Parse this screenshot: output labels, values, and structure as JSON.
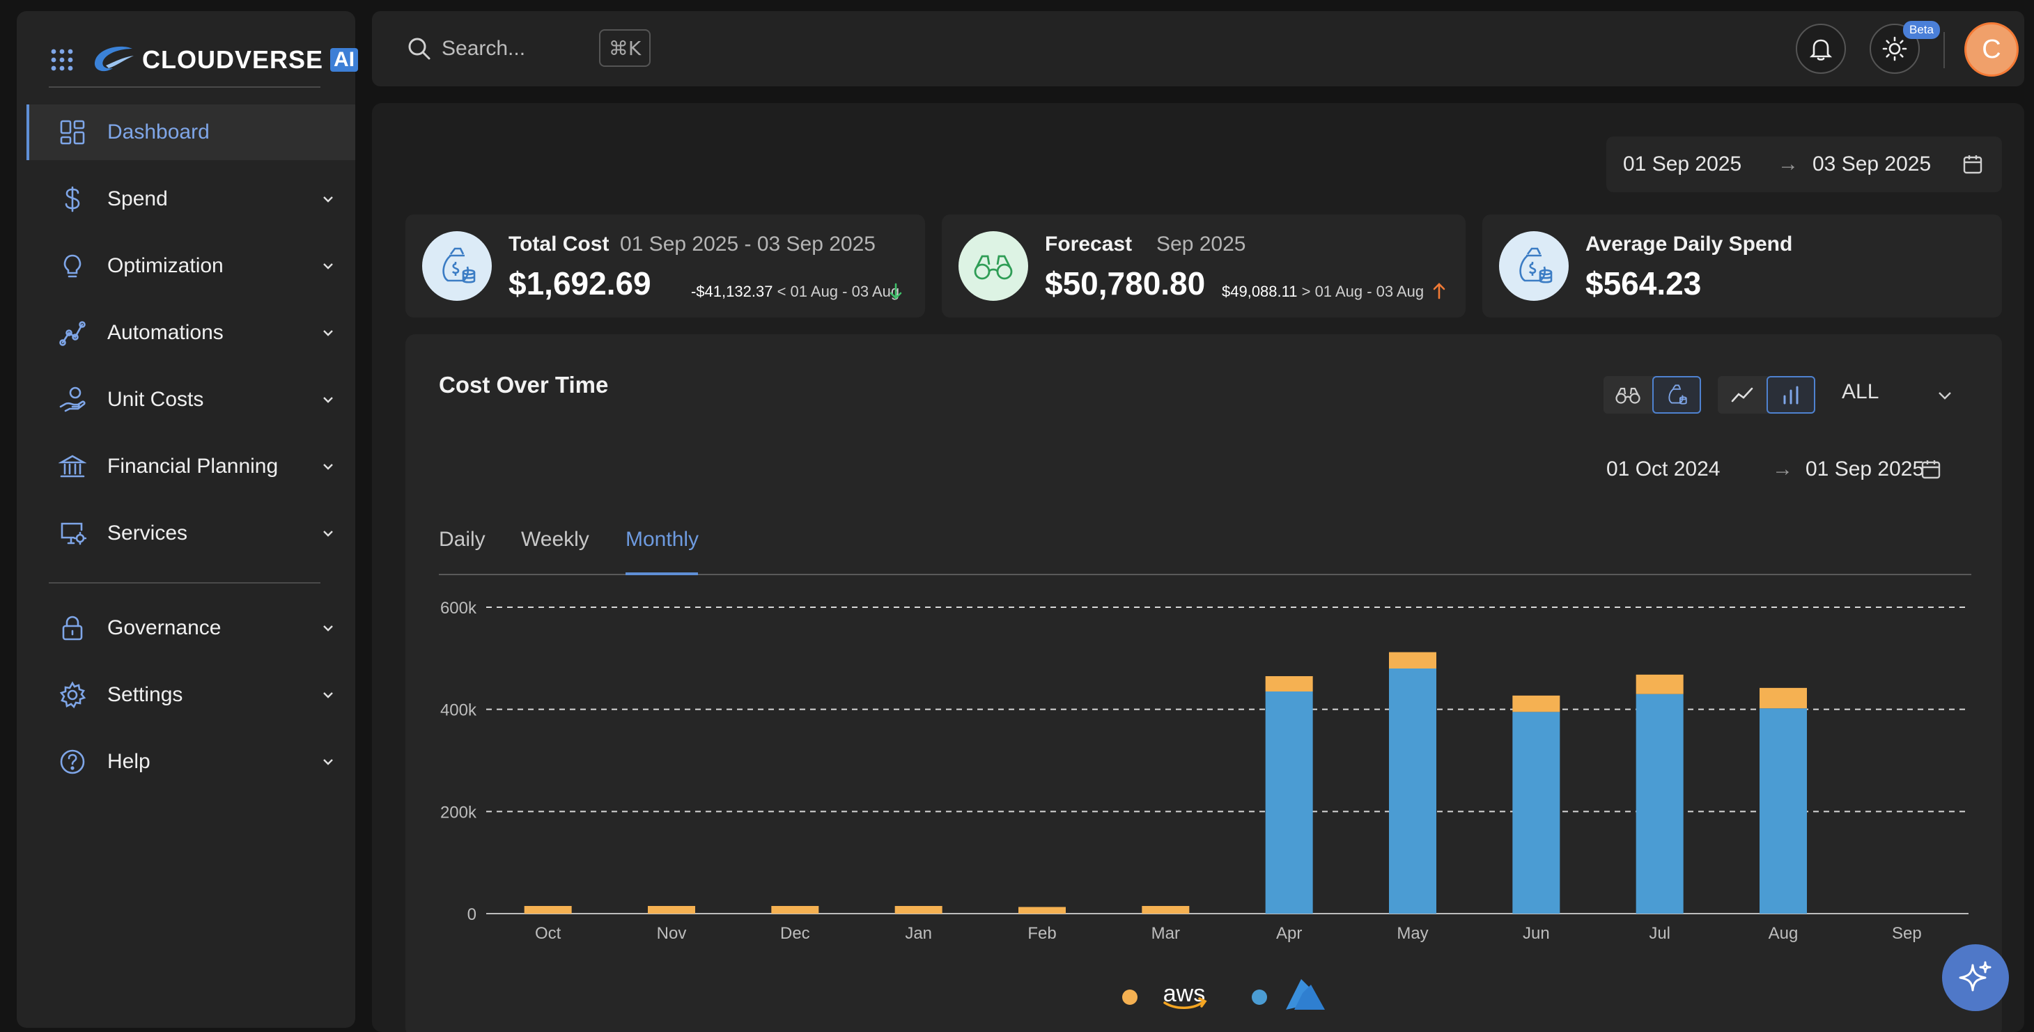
{
  "brand": {
    "name": "CLOUDVERSE",
    "ai_badge": "AI"
  },
  "sidebar": {
    "items": [
      {
        "label": "Dashboard",
        "icon": "dashboard-icon",
        "active": true
      },
      {
        "label": "Spend",
        "icon": "dollar-icon"
      },
      {
        "label": "Optimization",
        "icon": "lightbulb-icon"
      },
      {
        "label": "Automations",
        "icon": "automation-icon"
      },
      {
        "label": "Unit Costs",
        "icon": "hand-coin-icon"
      },
      {
        "label": "Financial Planning",
        "icon": "bank-icon"
      },
      {
        "label": "Services",
        "icon": "monitor-gear-icon"
      },
      {
        "label": "Governance",
        "icon": "lock-icon"
      },
      {
        "label": "Settings",
        "icon": "gear-icon"
      },
      {
        "label": "Help",
        "icon": "help-icon"
      }
    ]
  },
  "topbar": {
    "search_placeholder": "Search...",
    "shortcut": "⌘K",
    "beta_label": "Beta",
    "avatar_initial": "C"
  },
  "main": {
    "date_start": "01 Sep 2025",
    "date_arrow": "→",
    "date_end": "03 Sep 2025"
  },
  "kpis": {
    "total_cost": {
      "title": "Total Cost",
      "period": "01 Sep 2025 - 03 Sep 2025",
      "value": "$1,692.69",
      "delta_amount": "-$41,132.37",
      "delta_text": "< 01 Aug - 03 Aug",
      "trend": "down",
      "trend_color": "#3fbf6a"
    },
    "forecast": {
      "title": "Forecast",
      "period": "Sep 2025",
      "value": "$50,780.80",
      "delta_amount": "$49,088.11",
      "delta_text": "> 01 Aug - 03 Aug",
      "trend": "up",
      "trend_color": "#f07a36"
    },
    "avg_daily": {
      "title": "Average Daily Spend",
      "value": "$564.23"
    }
  },
  "card": {
    "title": "Cost Over Time",
    "filter_label": "ALL",
    "date_start": "01 Oct 2024",
    "date_arrow": "→",
    "date_end": "01 Sep 2025",
    "tabs": [
      "Daily",
      "Weekly",
      "Monthly"
    ],
    "active_tab": "Monthly"
  },
  "legend": [
    {
      "provider": "aws",
      "color": "#f5b152",
      "label": "aws"
    },
    {
      "provider": "azure",
      "color": "#4b9cd3"
    }
  ],
  "chart_data": {
    "type": "bar",
    "stacked": true,
    "categories": [
      "Oct",
      "Nov",
      "Dec",
      "Jan",
      "Feb",
      "Mar",
      "Apr",
      "May",
      "Jun",
      "Jul",
      "Aug",
      "Sep"
    ],
    "series": [
      {
        "provider": "azure",
        "color": "#4b9cd3",
        "values": [
          0,
          0,
          0,
          0,
          0,
          0,
          435000,
          480000,
          395000,
          430000,
          402000,
          0
        ]
      },
      {
        "provider": "aws",
        "color": "#f5b152",
        "values": [
          15000,
          15000,
          15000,
          15000,
          13000,
          15000,
          30000,
          32000,
          32000,
          38000,
          40000,
          0
        ]
      }
    ],
    "yticks": [
      "0",
      "200k",
      "400k",
      "600k"
    ],
    "ytick_values": [
      0,
      200000,
      400000,
      600000
    ],
    "ylim": [
      0,
      600000
    ],
    "grid": "dashed-horizontal",
    "legend_position": "bottom-center"
  }
}
